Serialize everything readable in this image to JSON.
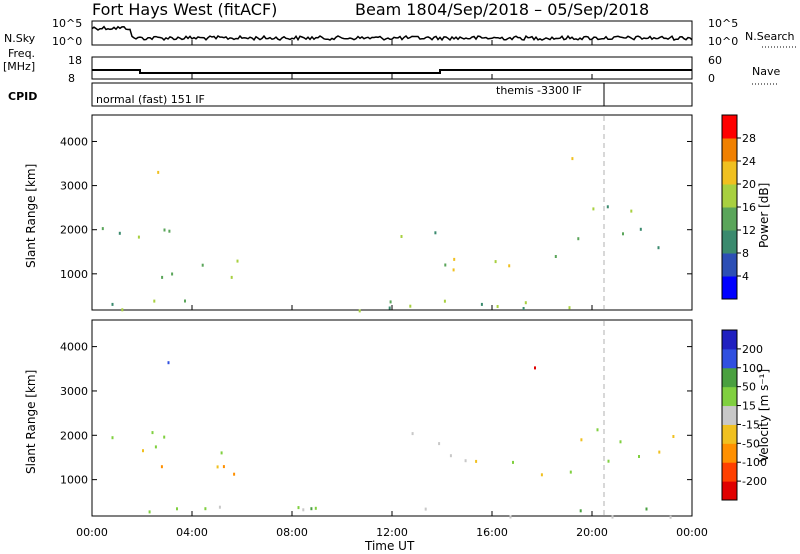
{
  "header": {
    "radar_title": "Fort Hays West (fitACF)",
    "beam_label": "Beam 18",
    "date_range": "04/Sep/2018 – 05/Sep/2018"
  },
  "strip_labels": {
    "nsky": "N.Sky",
    "nsearch": "N.Search",
    "freq": "Freq.",
    "freq_unit": "[MHz]",
    "nave": "Nave",
    "cpid": "CPID"
  },
  "strip_ticks": {
    "noise_top": "10^5",
    "noise_bottom": "10^0",
    "noise_right_top": "10^5",
    "noise_right_bottom": "10^0",
    "freq_top": "18",
    "freq_bottom": "8",
    "nave_top": "60",
    "nave_bottom": "0"
  },
  "cpid_labels": {
    "left": "normal (fast) 151 IF",
    "right": "themis -3300 IF"
  },
  "colors": {
    "power_scale": [
      "#0000ff",
      "#2c4fb5",
      "#3a8a6e",
      "#5aa55a",
      "#a8d040",
      "#f0c020",
      "#f08000",
      "#ff0000"
    ],
    "velocity_scale": [
      "#2020c0",
      "#3050e0",
      "#4aa040",
      "#80d040",
      "#c8c8c8",
      "#f0c020",
      "#ff9000",
      "#ff4000",
      "#e00000"
    ],
    "marker_line": "#b0b0b0"
  },
  "chart_data": [
    {
      "type": "heatmap",
      "panel": "power",
      "xlabel": "",
      "ylabel": "Slant Range [km]",
      "ylim": [
        180,
        4600
      ],
      "yticks": [
        "1000",
        "2000",
        "3000",
        "4000"
      ],
      "colorbar_label": "Power [dB]",
      "colorbar_ticks": [
        "4",
        "8",
        "12",
        "16",
        "20",
        "24",
        "28"
      ],
      "colorbar_range": [
        0,
        30
      ]
    },
    {
      "type": "heatmap",
      "panel": "velocity",
      "xlabel": "Time UT",
      "ylabel": "Slant Range [km]",
      "ylim": [
        180,
        4600
      ],
      "yticks": [
        "1000",
        "2000",
        "3000",
        "4000"
      ],
      "xticks": [
        "00:00",
        "04:00",
        "08:00",
        "12:00",
        "16:00",
        "20:00",
        "00:00"
      ],
      "colorbar_label": "Velocity [m s⁻¹]",
      "colorbar_ticks": [
        "200",
        "100",
        "50",
        "15",
        "-15",
        "-50",
        "-100",
        "-200"
      ]
    }
  ]
}
